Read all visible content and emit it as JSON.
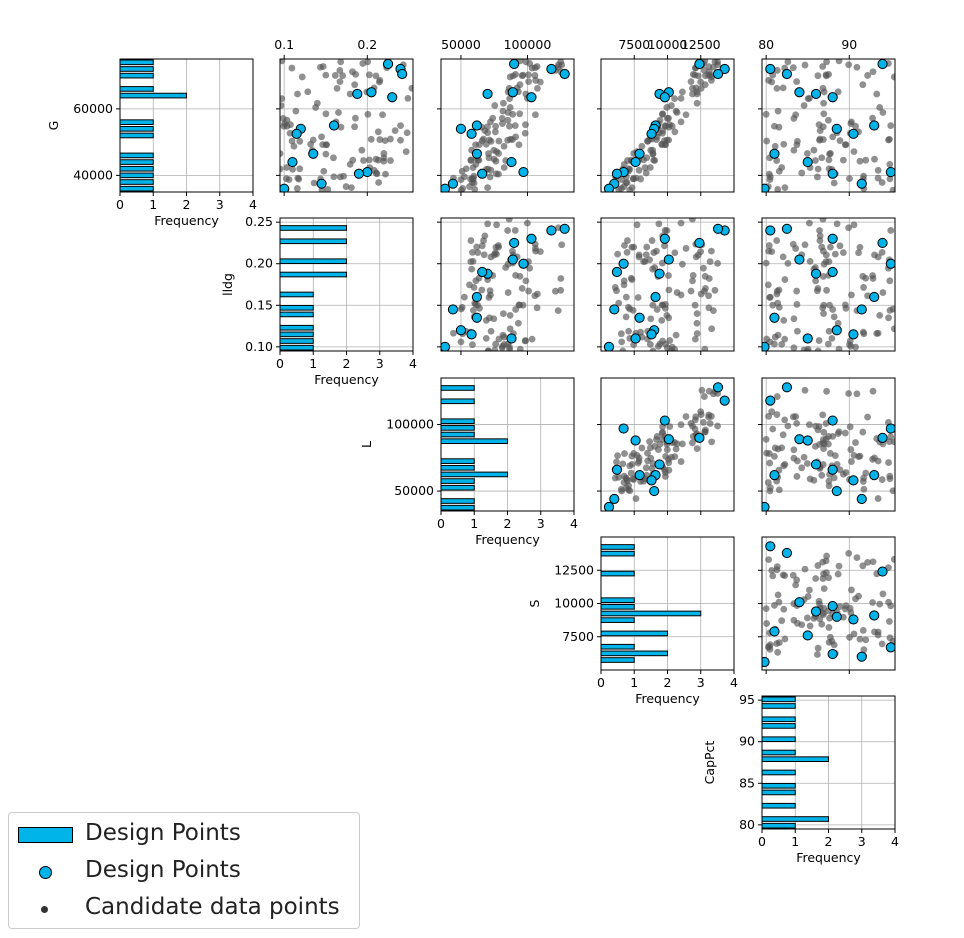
{
  "legend": {
    "design_hist": "Design Points",
    "design_points": "Design Points",
    "candidates": "Candidate data points"
  },
  "colors": {
    "design": "#00b4ea",
    "candidate": "#555555",
    "grid": "#b0b0b0"
  },
  "chart_data": {
    "type": "scatter",
    "subtype": "pair-plot matrix (upper triangle scatter, diagonal histograms)",
    "variables": [
      {
        "name": "G",
        "axis_label": "G",
        "range": [
          35000,
          75000
        ],
        "ticks": [
          40000,
          60000
        ],
        "tick_labels": [
          "40000",
          "60000"
        ]
      },
      {
        "name": "lldg",
        "axis_label": "lldg",
        "range": [
          0.095,
          0.255
        ],
        "ticks": [
          0.1,
          0.15,
          0.2,
          0.25
        ],
        "tick_labels": [
          "0.10",
          "0.15",
          "0.20",
          "0.25"
        ]
      },
      {
        "name": "L",
        "axis_label": "L",
        "range": [
          35000,
          135000
        ],
        "ticks": [
          50000,
          100000
        ],
        "tick_labels": [
          "50000",
          "100000"
        ]
      },
      {
        "name": "S",
        "axis_label": "S",
        "range": [
          5000,
          15000
        ],
        "ticks": [
          7500,
          10000,
          12500
        ],
        "tick_labels": [
          "7500",
          "10000",
          "12500"
        ]
      },
      {
        "name": "CapPct",
        "axis_label": "CapPct",
        "range": [
          79.5,
          95.5
        ],
        "ticks": [
          80,
          85,
          90,
          95
        ],
        "tick_labels": [
          "80",
          "85",
          "90",
          "95"
        ]
      }
    ],
    "top_tick_labels": [
      {
        "col": 1,
        "ticks": [
          0.1,
          0.2
        ],
        "labels": [
          "0.1",
          "0.2"
        ],
        "range": [
          0.095,
          0.255
        ]
      },
      {
        "col": 2,
        "ticks": [
          50000,
          100000
        ],
        "labels": [
          "50000",
          "100000"
        ],
        "range": [
          35000,
          135000
        ]
      },
      {
        "col": 3,
        "ticks": [
          7500,
          10000,
          12500
        ],
        "labels": [
          "7500",
          "10000",
          "12500"
        ],
        "range": [
          5000,
          15000
        ]
      },
      {
        "col": 4,
        "ticks": [
          80,
          90
        ],
        "labels": [
          "80",
          "90"
        ],
        "range": [
          79.5,
          95.5
        ]
      }
    ],
    "histogram_xlabel": "Frequency",
    "histogram_xlim": [
      0,
      4
    ],
    "histogram_xticks": [
      "0",
      "1",
      "2",
      "3",
      "4"
    ],
    "design_points": [
      {
        "G": 72000,
        "lldg": 0.24,
        "L": 118000,
        "S": 14300,
        "CapPct": 80.5
      },
      {
        "G": 73500,
        "lldg": 0.225,
        "L": 90000,
        "S": 12400,
        "CapPct": 94.0
      },
      {
        "G": 70500,
        "lldg": 0.242,
        "L": 128000,
        "S": 13800,
        "CapPct": 82.5
      },
      {
        "G": 65000,
        "lldg": 0.205,
        "L": 89000,
        "S": 10100,
        "CapPct": 84.0
      },
      {
        "G": 64500,
        "lldg": 0.188,
        "L": 70000,
        "S": 9400,
        "CapPct": 86.0
      },
      {
        "G": 63500,
        "lldg": 0.23,
        "L": 103000,
        "S": 9800,
        "CapPct": 88.0
      },
      {
        "G": 55000,
        "lldg": 0.16,
        "L": 62000,
        "S": 9100,
        "CapPct": 93.0
      },
      {
        "G": 54000,
        "lldg": 0.12,
        "L": 50000,
        "S": 9000,
        "CapPct": 88.5
      },
      {
        "G": 52500,
        "lldg": 0.115,
        "L": 58000,
        "S": 8800,
        "CapPct": 90.5
      },
      {
        "G": 46500,
        "lldg": 0.135,
        "L": 62000,
        "S": 7900,
        "CapPct": 81.0
      },
      {
        "G": 44000,
        "lldg": 0.11,
        "L": 88000,
        "S": 7600,
        "CapPct": 85.0
      },
      {
        "G": 41000,
        "lldg": 0.2,
        "L": 97000,
        "S": 6700,
        "CapPct": 95.0
      },
      {
        "G": 40500,
        "lldg": 0.19,
        "L": 66000,
        "S": 6200,
        "CapPct": 88.0
      },
      {
        "G": 37500,
        "lldg": 0.145,
        "L": 44000,
        "S": 6000,
        "CapPct": 91.5
      },
      {
        "G": 36000,
        "lldg": 0.1,
        "L": 38000,
        "S": 5600,
        "CapPct": 79.8
      }
    ],
    "candidate_points_note": "",
    "legend_position": "lower-left",
    "grid": true
  }
}
